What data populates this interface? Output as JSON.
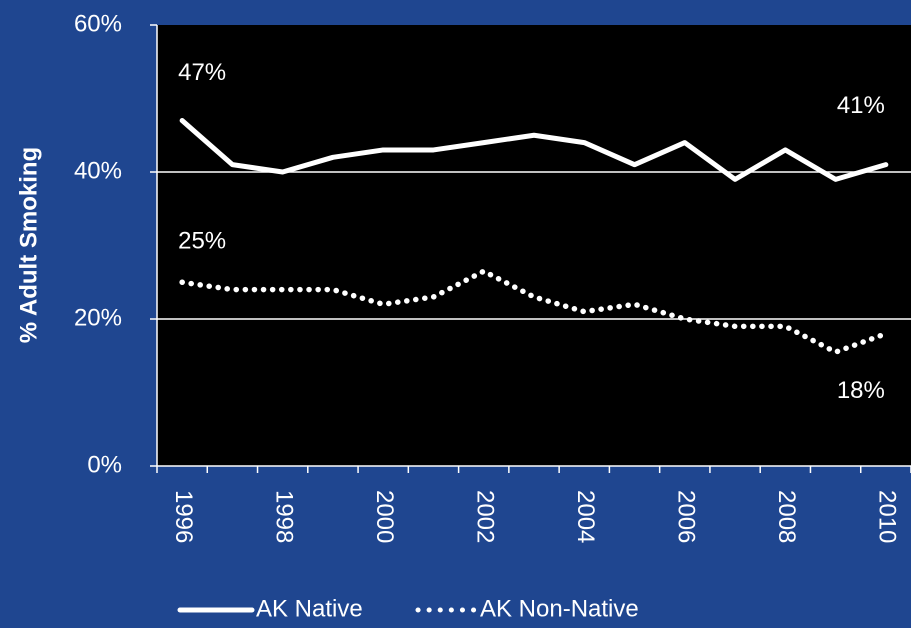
{
  "chart_data": {
    "type": "line",
    "categories": [
      "1996",
      null,
      "1998",
      null,
      "2000",
      null,
      "2002",
      null,
      "2004",
      null,
      "2006",
      null,
      "2008",
      null,
      "2010"
    ],
    "series": [
      {
        "name": "AK Native",
        "color": "#ffffff",
        "style": "solid",
        "values": [
          47,
          41,
          40,
          42,
          43,
          43,
          44,
          45,
          44,
          41,
          44,
          39,
          43,
          39,
          41
        ],
        "value_labels": [
          "47%",
          null,
          null,
          null,
          null,
          null,
          null,
          null,
          null,
          null,
          null,
          null,
          null,
          null,
          "41%"
        ]
      },
      {
        "name": "AK Non-Native",
        "color": "#ffffff",
        "style": "dotted",
        "values": [
          25,
          24,
          24,
          24,
          22,
          23,
          26.5,
          23,
          21,
          22,
          20,
          19,
          19,
          15.5,
          18
        ],
        "value_labels": [
          "25%",
          null,
          null,
          null,
          null,
          null,
          null,
          null,
          null,
          null,
          null,
          null,
          null,
          null,
          "18%"
        ]
      }
    ],
    "y_label": "% Adult Smoking",
    "ylim": [
      0,
      60
    ],
    "yticks": [
      {
        "value": 0,
        "label": "0%"
      },
      {
        "value": 20,
        "label": "20%"
      },
      {
        "value": 40,
        "label": "40%"
      },
      {
        "value": 60,
        "label": "60%"
      }
    ],
    "grid": true
  }
}
